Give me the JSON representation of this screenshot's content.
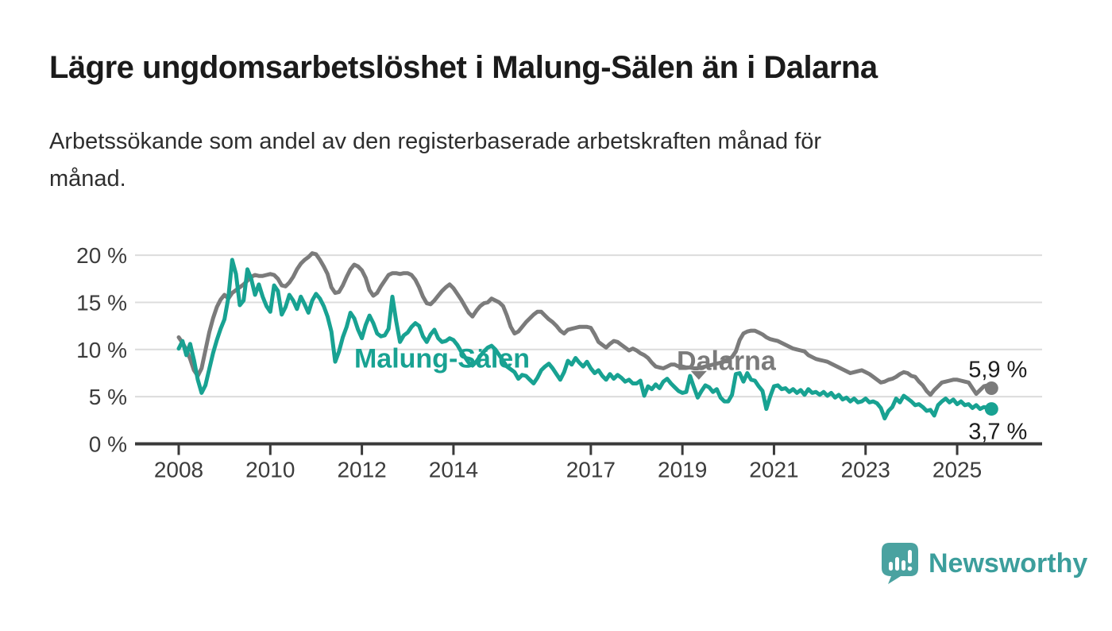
{
  "header": {
    "title": "Lägre ungdomsarbetslöshet i Malung-Sälen än i Dalarna",
    "subtitle_lines": [
      "Arbetssökande som andel av den registerbaserade arbetskraften månad för",
      "månad."
    ]
  },
  "branding": {
    "name": "Newsworthy",
    "icon": "speech-bubble-bar-chart",
    "color": "#3c9e9c",
    "icon_color": "#4aa2a0"
  },
  "chart_data": {
    "type": "line",
    "title": "Lägre ungdomsarbetslöshet i Malung-Sälen än i Dalarna",
    "unit": "%",
    "frequency": "monthly",
    "x_start": "2008-01",
    "x_end": "2025-10",
    "ylim": [
      0,
      20
    ],
    "grid": "horizontal",
    "legend_position": "inline-labels",
    "yticks": [
      {
        "value": 0,
        "label": "0 %"
      },
      {
        "value": 5,
        "label": "5 %"
      },
      {
        "value": 10,
        "label": "10 %"
      },
      {
        "value": 15,
        "label": "15 %"
      },
      {
        "value": 20,
        "label": "20 %"
      }
    ],
    "xticks": [
      {
        "year": 2008,
        "label": "2008"
      },
      {
        "year": 2010,
        "label": "2010"
      },
      {
        "year": 2012,
        "label": "2012"
      },
      {
        "year": 2014,
        "label": "2014"
      },
      {
        "year": 2017,
        "label": "2017"
      },
      {
        "year": 2019,
        "label": "2019"
      },
      {
        "year": 2021,
        "label": "2021"
      },
      {
        "year": 2023,
        "label": "2023"
      },
      {
        "year": 2025,
        "label": "2025"
      }
    ],
    "inline_labels": [
      {
        "text": "Malung-Sälen",
        "color": "#18a292",
        "x_month": 69,
        "y_value": 9.1,
        "caret": null
      },
      {
        "text": "Dalarna",
        "color": "#7b7b7b",
        "x_month": 143.5,
        "y_value": 8.85,
        "caret": {
          "x_month": 136.3,
          "y_value": 7.3
        }
      }
    ],
    "series": [
      {
        "name": "Dalarna",
        "color": "#7b7b7b",
        "end_label": "5,9 %",
        "end_label_position": "above",
        "values": [
          11.3,
          10.7,
          10.0,
          9.0,
          7.8,
          7.2,
          8.0,
          9.9,
          11.8,
          13.3,
          14.5,
          15.3,
          15.8,
          15.4,
          16.0,
          16.3,
          16.6,
          16.9,
          17.3,
          17.7,
          17.9,
          17.8,
          17.8,
          17.9,
          18.0,
          17.9,
          17.5,
          16.8,
          16.7,
          17.1,
          17.7,
          18.5,
          19.1,
          19.5,
          19.8,
          20.2,
          20.1,
          19.5,
          18.8,
          18.0,
          16.6,
          16.0,
          16.1,
          16.8,
          17.7,
          18.5,
          19.0,
          18.8,
          18.4,
          17.6,
          16.3,
          15.7,
          16.0,
          16.7,
          17.3,
          17.9,
          18.1,
          18.1,
          18.0,
          18.1,
          18.1,
          17.9,
          17.4,
          16.6,
          15.6,
          14.9,
          14.8,
          15.2,
          15.7,
          16.2,
          16.6,
          16.9,
          16.5,
          15.9,
          15.3,
          14.6,
          13.9,
          13.5,
          14.1,
          14.6,
          14.9,
          15.0,
          15.4,
          15.2,
          15.0,
          14.6,
          13.6,
          12.4,
          11.7,
          11.9,
          12.4,
          12.9,
          13.3,
          13.7,
          14.0,
          14.0,
          13.6,
          13.2,
          12.9,
          12.5,
          12.0,
          11.7,
          12.1,
          12.2,
          12.3,
          12.4,
          12.4,
          12.4,
          12.3,
          11.6,
          10.8,
          10.5,
          10.2,
          10.6,
          10.9,
          10.8,
          10.5,
          10.2,
          9.9,
          10.1,
          9.9,
          9.6,
          9.4,
          9.1,
          8.6,
          8.2,
          8.1,
          8.0,
          8.2,
          8.4,
          8.4,
          8.2,
          8.2,
          8.1,
          8.1,
          8.0,
          8.0,
          8.1,
          8.2,
          8.3,
          8.4,
          8.5,
          8.6,
          8.8,
          9.0,
          9.2,
          9.8,
          11.0,
          11.7,
          11.9,
          12.0,
          12.0,
          11.8,
          11.6,
          11.3,
          11.1,
          11.0,
          10.9,
          10.7,
          10.5,
          10.3,
          10.1,
          10.0,
          9.9,
          9.8,
          9.4,
          9.2,
          9.0,
          8.9,
          8.8,
          8.7,
          8.5,
          8.3,
          8.1,
          7.9,
          7.7,
          7.5,
          7.6,
          7.7,
          7.8,
          7.6,
          7.4,
          7.1,
          6.8,
          6.5,
          6.6,
          6.8,
          6.9,
          7.1,
          7.4,
          7.6,
          7.5,
          7.2,
          7.1,
          6.6,
          6.2,
          5.6,
          5.2,
          5.7,
          6.1,
          6.5,
          6.6,
          6.7,
          6.8,
          6.8,
          6.7,
          6.6,
          6.5,
          5.9,
          5.3,
          5.7,
          6.1,
          6.2,
          5.9
        ]
      },
      {
        "name": "Malung-Sälen",
        "color": "#18a292",
        "end_label": "3,7 %",
        "end_label_position": "below",
        "values": [
          10.1,
          10.9,
          9.4,
          10.6,
          8.9,
          6.8,
          5.4,
          6.2,
          7.9,
          9.6,
          11.0,
          12.2,
          13.2,
          15.5,
          19.5,
          18.0,
          14.7,
          15.2,
          18.5,
          17.5,
          15.8,
          16.9,
          15.6,
          14.6,
          14.0,
          16.8,
          16.2,
          13.7,
          14.5,
          15.8,
          15.2,
          14.3,
          15.6,
          14.8,
          13.9,
          15.2,
          15.9,
          15.4,
          14.6,
          13.5,
          11.9,
          8.7,
          9.8,
          11.3,
          12.4,
          13.9,
          13.3,
          12.1,
          11.2,
          12.6,
          13.6,
          12.8,
          11.7,
          11.4,
          11.5,
          12.2,
          15.6,
          13.0,
          10.8,
          11.5,
          11.8,
          12.4,
          12.8,
          12.5,
          11.4,
          10.8,
          11.6,
          12.1,
          11.2,
          10.8,
          10.9,
          11.2,
          11.0,
          10.5,
          9.8,
          9.2,
          8.6,
          8.3,
          8.7,
          9.3,
          9.8,
          10.2,
          10.4,
          10.0,
          9.4,
          8.8,
          8.2,
          7.9,
          7.6,
          6.9,
          7.3,
          7.2,
          6.8,
          6.4,
          7.0,
          7.8,
          8.2,
          8.5,
          8.0,
          7.4,
          6.8,
          7.6,
          8.8,
          8.4,
          9.1,
          8.6,
          8.2,
          8.7,
          8.0,
          7.5,
          7.8,
          7.2,
          6.8,
          7.4,
          6.9,
          7.3,
          7.0,
          6.6,
          6.8,
          6.4,
          6.4,
          6.7,
          5.1,
          6.1,
          5.8,
          6.3,
          5.9,
          6.6,
          6.9,
          6.4,
          6.0,
          5.6,
          5.4,
          5.5,
          7.2,
          6.0,
          4.9,
          5.6,
          6.2,
          6.0,
          5.5,
          5.8,
          4.9,
          4.5,
          4.5,
          5.2,
          7.4,
          7.5,
          6.6,
          7.5,
          6.8,
          6.7,
          6.1,
          5.6,
          3.7,
          5.0,
          6.1,
          6.2,
          5.8,
          5.9,
          5.5,
          5.8,
          5.4,
          5.7,
          5.2,
          5.8,
          5.4,
          5.5,
          5.2,
          5.5,
          5.1,
          5.4,
          4.9,
          5.2,
          4.7,
          4.9,
          4.5,
          4.8,
          4.4,
          4.5,
          4.8,
          4.4,
          4.5,
          4.3,
          3.8,
          2.7,
          3.5,
          3.9,
          4.8,
          4.4,
          5.1,
          4.8,
          4.5,
          4.1,
          4.2,
          3.9,
          3.5,
          3.6,
          3.0,
          4.1,
          4.5,
          4.8,
          4.4,
          4.7,
          4.2,
          4.5,
          4.1,
          4.2,
          3.8,
          4.1,
          3.7,
          3.9,
          3.8,
          3.7
        ]
      }
    ],
    "colors": {
      "grid": "#dcdcdc",
      "axis": "#3a3a3a",
      "tick_text": "#3c3c3c",
      "end_label_text": "#1c1c1c"
    }
  }
}
